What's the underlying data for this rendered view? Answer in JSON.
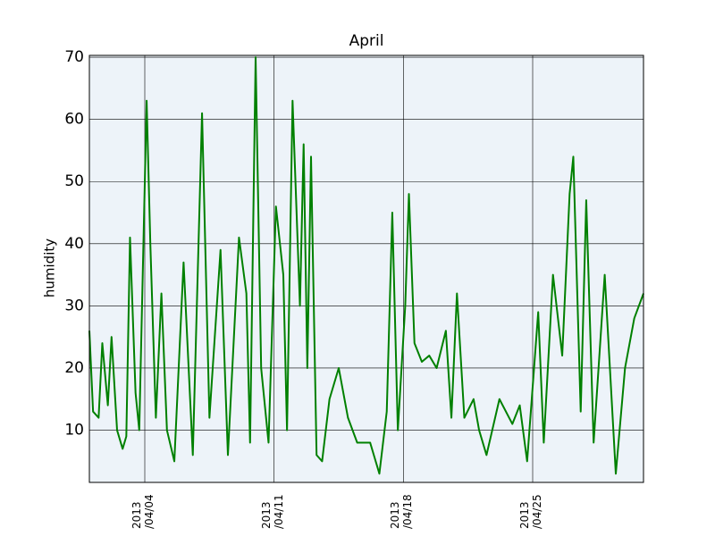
{
  "chart_data": {
    "type": "line",
    "title": "April",
    "ylabel": "humidity",
    "series": [
      {
        "name": "humidity",
        "color": "#008000",
        "x": [
          1.0,
          1.2,
          1.5,
          1.7,
          2.0,
          2.2,
          2.5,
          2.8,
          3.0,
          3.2,
          3.5,
          3.7,
          4.1,
          4.3,
          4.6,
          4.9,
          5.2,
          5.6,
          6.1,
          6.6,
          7.1,
          7.5,
          8.1,
          8.5,
          9.1,
          9.5,
          9.7,
          10.0,
          10.3,
          10.7,
          11.1,
          11.5,
          11.7,
          12.0,
          12.4,
          12.6,
          12.8,
          13.0,
          13.3,
          13.6,
          14.0,
          14.5,
          15.0,
          15.5,
          16.2,
          16.7,
          17.1,
          17.4,
          17.7,
          18.1,
          18.3,
          18.6,
          19.0,
          19.4,
          19.8,
          20.3,
          20.6,
          20.9,
          21.3,
          21.8,
          22.1,
          22.5,
          23.2,
          23.9,
          24.3,
          24.7,
          25.3,
          25.6,
          26.1,
          26.6,
          27.0,
          27.2,
          27.6,
          27.9,
          28.3,
          28.9,
          29.5,
          30.0,
          30.5,
          31.0
        ],
        "values": [
          26,
          13,
          12,
          24,
          14,
          25,
          10,
          7,
          9,
          41,
          16,
          10,
          63,
          40,
          12,
          32,
          10,
          5,
          37,
          6,
          61,
          12,
          39,
          6,
          41,
          32,
          8,
          70,
          20,
          8,
          46,
          35,
          10,
          63,
          30,
          56,
          20,
          54,
          6,
          5,
          15,
          20,
          12,
          8,
          8,
          3,
          13,
          45,
          10,
          30,
          48,
          24,
          21,
          22,
          20,
          26,
          12,
          32,
          12,
          15,
          10,
          6,
          15,
          11,
          14,
          5,
          29,
          8,
          35,
          22,
          48,
          54,
          13,
          47,
          8,
          35,
          3,
          20,
          28,
          32
        ]
      }
    ],
    "xlim": [
      1,
      31
    ],
    "xticks": [
      {
        "value": 4,
        "label": "2013\n/04/04"
      },
      {
        "value": 11,
        "label": "2013\n/04/11"
      },
      {
        "value": 18,
        "label": "2013\n/04/18"
      },
      {
        "value": 25,
        "label": "2013\n/04/25"
      }
    ],
    "ylim": [
      1.6,
      70.3
    ],
    "yticks": [
      10,
      20,
      30,
      40,
      50,
      60,
      70
    ],
    "grid": true
  }
}
